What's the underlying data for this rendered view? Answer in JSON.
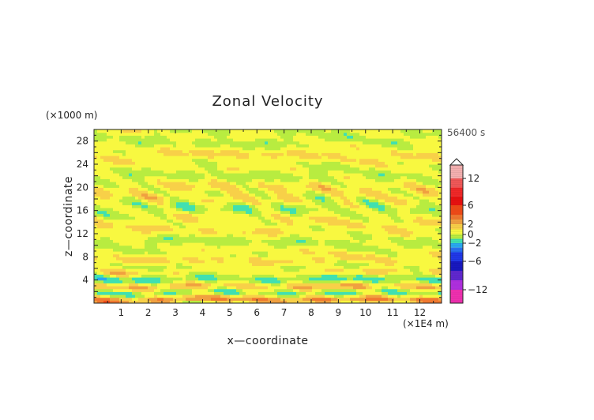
{
  "chart_data": {
    "type": "heatmap",
    "title": "Zonal Velocity",
    "xlabel": "x—coordinate",
    "ylabel": "z—coordinate",
    "x_unit_label": "(×1E4 m)",
    "y_unit_label": "(×1000 m)",
    "time_label": "56400 s",
    "xlim": [
      0,
      12.8
    ],
    "ylim": [
      0,
      30
    ],
    "x_ticks": [
      1,
      2,
      3,
      4,
      5,
      6,
      7,
      8,
      9,
      10,
      11,
      12
    ],
    "y_ticks": [
      4,
      8,
      12,
      16,
      20,
      24,
      28
    ],
    "colorbar": {
      "levels": [
        {
          "value": 12,
          "label": "12"
        },
        {
          "value": 6,
          "label": "6"
        },
        {
          "value": 2,
          "label": "2"
        },
        {
          "value": 0,
          "label": "0"
        },
        {
          "value": -2,
          "label": "−2"
        },
        {
          "value": -6,
          "label": "−6"
        },
        {
          "value": -12,
          "label": "−12"
        }
      ],
      "colors": [
        {
          "from": 12,
          "to": 15,
          "color": "#f4b0b0"
        },
        {
          "from": 10,
          "to": 12,
          "color": "#f05858"
        },
        {
          "from": 8,
          "to": 10,
          "color": "#f02828"
        },
        {
          "from": 6,
          "to": 8,
          "color": "#e81010"
        },
        {
          "from": 4,
          "to": 6,
          "color": "#f04a18"
        },
        {
          "from": 3,
          "to": 4,
          "color": "#f07830"
        },
        {
          "from": 2,
          "to": 3,
          "color": "#f0a040"
        },
        {
          "from": 1,
          "to": 2,
          "color": "#f8d048"
        },
        {
          "from": 0,
          "to": 1,
          "color": "#f8f840"
        },
        {
          "from": -1,
          "to": 0,
          "color": "#b8ec40"
        },
        {
          "from": -2,
          "to": -1,
          "color": "#40e0b0"
        },
        {
          "from": -3,
          "to": -2,
          "color": "#28a8f0"
        },
        {
          "from": -4,
          "to": -3,
          "color": "#2870f0"
        },
        {
          "from": -6,
          "to": -4,
          "color": "#2038e8"
        },
        {
          "from": -8,
          "to": -6,
          "color": "#1818c0"
        },
        {
          "from": -10,
          "to": -8,
          "color": "#6028d0"
        },
        {
          "from": -12,
          "to": -10,
          "color": "#b030e0"
        },
        {
          "from": -15,
          "to": -12,
          "color": "#f030b0"
        }
      ],
      "top_extension": true
    },
    "field_description": "turbulent horizontal banding; mostly 0 to 1 (yellow) and -1 to 0 (green) with scattered positive (orange) and negative (blue) bands concentrated below z=8"
  }
}
